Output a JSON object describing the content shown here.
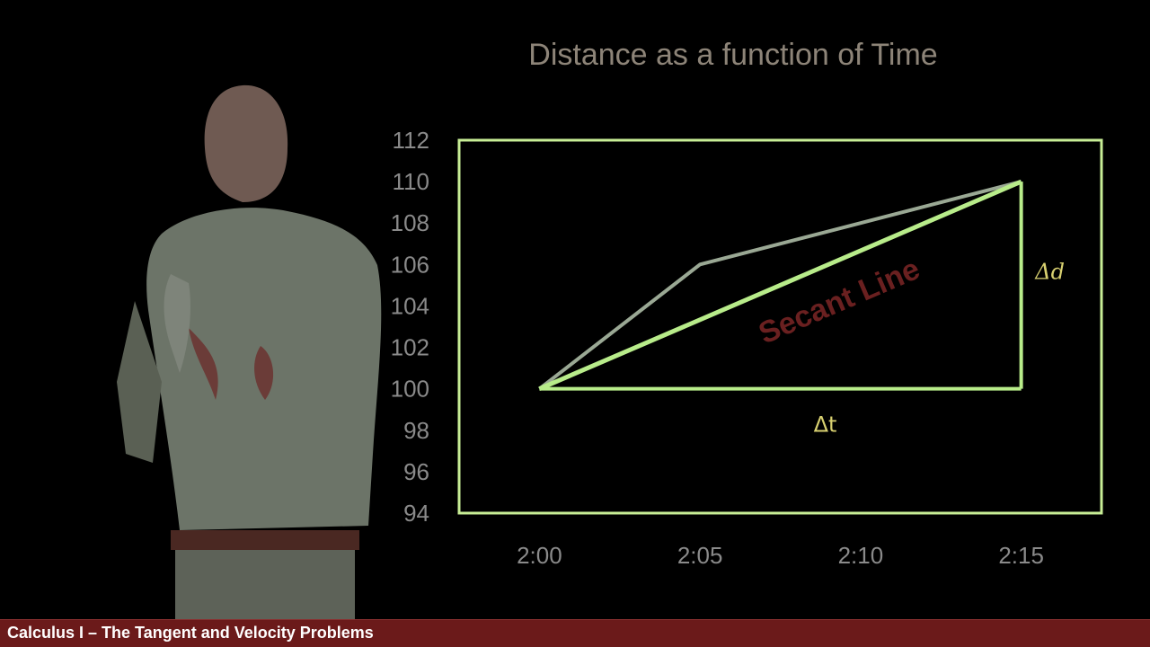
{
  "footer": {
    "title": "Calculus I – The Tangent and Velocity Problems"
  },
  "colors": {
    "frame": "#c8ee96",
    "curve": "#9aa894",
    "secant": "#b8ec8a",
    "secant_label": "#6a2020",
    "delta_labels": "#d8d070",
    "footer_bg": "#6b1a1a"
  },
  "chart_data": {
    "type": "line",
    "title": "Distance as a function of Time",
    "xlabel": "",
    "ylabel": "",
    "x_ticks": [
      "2:00",
      "2:05",
      "2:10",
      "2:15"
    ],
    "x_range_minutes": [
      -2.5,
      17.5
    ],
    "y_ticks": [
      94,
      96,
      98,
      100,
      102,
      104,
      106,
      108,
      110,
      112
    ],
    "ylim": [
      94,
      112
    ],
    "grid": false,
    "series": [
      {
        "x": [
          "2:00",
          "2:05",
          "2:15"
        ],
        "y": [
          100,
          106,
          110
        ]
      }
    ],
    "annotations": {
      "secant_label": "Secant Line",
      "delta_t": "Δt",
      "delta_d": "Δd",
      "secant_from": {
        "x": "2:00",
        "y": 100
      },
      "secant_to": {
        "x": "2:15",
        "y": 110
      }
    }
  }
}
